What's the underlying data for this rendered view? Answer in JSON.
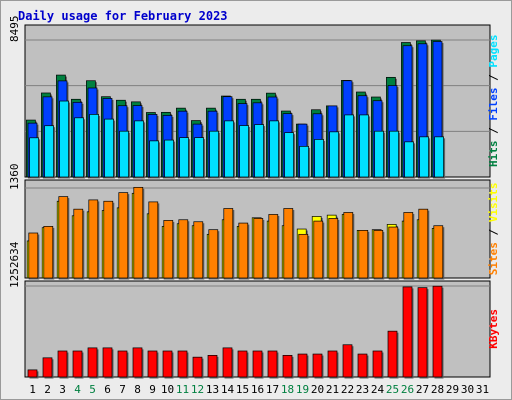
{
  "chart_data": {
    "type": "bar",
    "title": "Daily usage for February 2023",
    "categories": [
      "1",
      "2",
      "3",
      "4",
      "5",
      "6",
      "7",
      "8",
      "9",
      "10",
      "11",
      "12",
      "13",
      "14",
      "15",
      "16",
      "17",
      "18",
      "19",
      "20",
      "21",
      "22",
      "23",
      "24",
      "25",
      "26",
      "27",
      "28",
      "29",
      "30",
      "31"
    ],
    "weekend_days": [
      "4",
      "5",
      "11",
      "12",
      "18",
      "19",
      "25",
      "26"
    ],
    "grid": true,
    "colors": {
      "hits": "#008040",
      "files": "#0040ff",
      "pages": "#00e0ff",
      "visits": "#ffff00",
      "sites": "#ff8000",
      "kbytes": "#ff0000",
      "weekday_label": "#000000",
      "weekend_label": "#008040",
      "title": "#0000cc"
    },
    "panels": [
      {
        "name": "hits-files-pages",
        "max_label": "8495",
        "ylim": [
          0,
          8495
        ],
        "legend": [
          {
            "label": "Hits",
            "color": "#008040"
          },
          {
            "label": "Files",
            "color": "#0040ff"
          },
          {
            "label": "Pages",
            "color": "#00e0ff"
          }
        ],
        "series": [
          {
            "name": "Hits",
            "values": [
              3530,
              5210,
              6320,
              4820,
              5970,
              4980,
              4760,
              4660,
              4000,
              4010,
              4270,
              3500,
              4270,
              5020,
              4820,
              4820,
              5200,
              4090,
              3280,
              4170,
              4410,
              5990,
              5270,
              4960,
              6180,
              8340,
              8440,
              8490,
              null,
              null,
              null
            ]
          },
          {
            "name": "Files",
            "values": [
              3340,
              4970,
              5960,
              4630,
              5520,
              4870,
              4420,
              4430,
              3880,
              3820,
              4080,
              3280,
              4080,
              4980,
              4550,
              4600,
              4960,
              3930,
              3280,
              3920,
              4410,
              5970,
              5040,
              4730,
              5670,
              8140,
              8260,
              8400,
              null,
              null,
              null
            ]
          },
          {
            "name": "Pages",
            "values": [
              2430,
              3180,
              4710,
              3670,
              3880,
              3590,
              2840,
              3480,
              2240,
              2290,
              2440,
              2440,
              2840,
              3480,
              3190,
              3250,
              3480,
              2750,
              1900,
              2330,
              2800,
              3850,
              3850,
              2840,
              2840,
              2180,
              2490,
              2490,
              null,
              null,
              null
            ]
          }
        ]
      },
      {
        "name": "visits-sites",
        "max_label": "1360",
        "ylim": [
          0,
          1360
        ],
        "legend": [
          {
            "label": "Sites",
            "color": "#ff8000"
          },
          {
            "label": "Visits",
            "color": "#ffff00"
          }
        ],
        "series": [
          {
            "name": "Visits",
            "values": [
              560,
              760,
              1160,
              940,
              1000,
              1020,
              1060,
              1280,
              970,
              780,
              820,
              790,
              660,
              880,
              780,
              910,
              860,
              790,
              740,
              930,
              950,
              960,
              720,
              730,
              810,
              860,
              880,
              750,
              null,
              null,
              null
            ]
          },
          {
            "name": "Sites",
            "values": [
              680,
              780,
              1230,
              1040,
              1180,
              1160,
              1290,
              1370,
              1150,
              870,
              880,
              850,
              730,
              1050,
              830,
              900,
              960,
              1050,
              660,
              860,
              900,
              990,
              720,
              720,
              770,
              990,
              1040,
              790,
              null,
              null,
              null
            ]
          }
        ]
      },
      {
        "name": "kbytes",
        "max_label": "1252634",
        "ylim": [
          0,
          1252634
        ],
        "legend": [
          {
            "label": "KBytes",
            "color": "#ff0000"
          }
        ],
        "series": [
          {
            "name": "KBytes",
            "values": [
              98000,
              264000,
              358000,
              358000,
              401000,
              401000,
              358000,
              401000,
              358000,
              358000,
              358000,
              273000,
              298000,
              401000,
              358000,
              358000,
              358000,
              298000,
              316000,
              316000,
              358000,
              444000,
              316000,
              358000,
              631000,
              1240000,
              1230000,
              1250000,
              null,
              null,
              null
            ]
          }
        ]
      }
    ]
  }
}
